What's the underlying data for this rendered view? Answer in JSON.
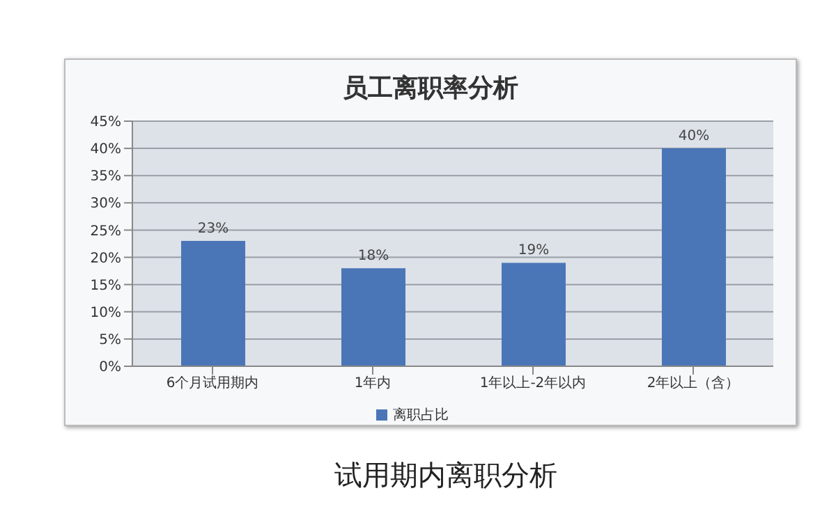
{
  "chart_data": {
    "type": "bar",
    "title": "员工离职率分析",
    "categories": [
      "6个月试用期内",
      "1年内",
      "1年以上-2年以内",
      "2年以上（含）"
    ],
    "series": [
      {
        "name": "离职占比",
        "color": "#4a76b8",
        "values": [
          23,
          18,
          19,
          40
        ],
        "value_labels": [
          "23%",
          "18%",
          "19%",
          "40%"
        ]
      }
    ],
    "ylim": [
      0,
      45
    ],
    "yticks": [
      {
        "value": 0,
        "label": "0%"
      },
      {
        "value": 5,
        "label": "5%"
      },
      {
        "value": 10,
        "label": "10%"
      },
      {
        "value": 15,
        "label": "15%"
      },
      {
        "value": 20,
        "label": "20%"
      },
      {
        "value": 25,
        "label": "25%"
      },
      {
        "value": 30,
        "label": "30%"
      },
      {
        "value": 35,
        "label": "35%"
      },
      {
        "value": 40,
        "label": "40%"
      },
      {
        "value": 45,
        "label": "45%"
      }
    ],
    "grid": "y",
    "legend": "bottom",
    "annotations": [
      "试用期内离职分析"
    ]
  }
}
